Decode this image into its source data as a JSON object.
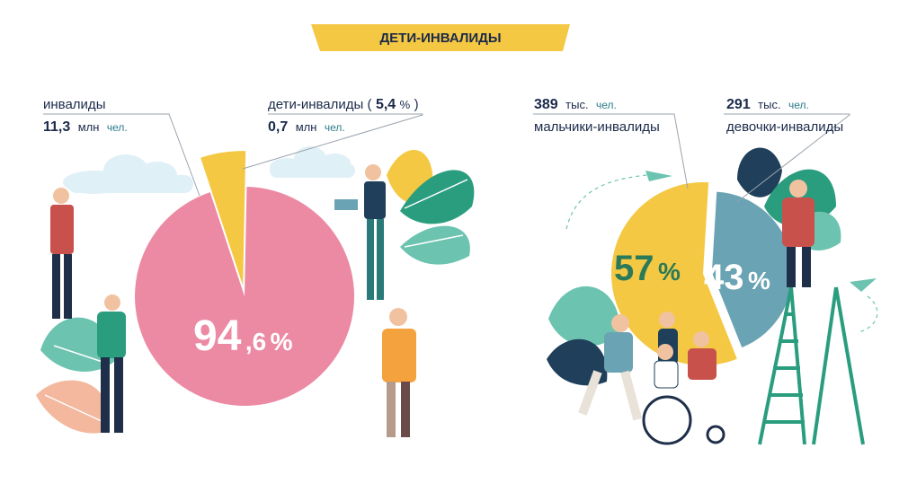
{
  "banner": {
    "title": "ДЕТИ-ИНВАЛИДЫ"
  },
  "left_chart": {
    "labels": {
      "disabled_title": "инвалиды",
      "disabled_value": "11,3",
      "disabled_unit": "млн",
      "disabled_suffix": "чел.",
      "children_title": "дети-инвалиды (",
      "children_pct_int": "5,4",
      "children_pct_sign": "%",
      "children_close": ")",
      "children_value": "0,7",
      "children_unit": "млн",
      "children_suffix": "чел.",
      "big_int": "94",
      "big_dec": ",6",
      "big_sign": "%"
    }
  },
  "right_chart": {
    "labels": {
      "boys_value": "389",
      "boys_unit": "тыс.",
      "boys_suffix": "чел.",
      "boys_title": "мальчики-инвалиды",
      "girls_value": "291",
      "girls_unit": "тыс.",
      "girls_suffix": "чел.",
      "girls_title": "девочки-инвалиды",
      "boys_pct": "57",
      "boys_sign": "%",
      "girls_pct": "43",
      "girls_sign": "%"
    }
  },
  "colors": {
    "banner": "#f4c842",
    "pink": "#ec8aa4",
    "yellow": "#f4c842",
    "teal": "#6aa3b4",
    "leaf_green": "#2a9d7f",
    "leaf_light": "#6cc3b0",
    "leaf_dark": "#1f3f5a",
    "cloud": "#dff0f6"
  },
  "chart_data": [
    {
      "type": "pie",
      "title": "",
      "slices": [
        {
          "name": "инвалиды",
          "value": 94.6,
          "absolute": "11,3 млн чел."
        },
        {
          "name": "дети-инвалиды",
          "value": 5.4,
          "absolute": "0,7 млн чел."
        }
      ]
    },
    {
      "type": "pie",
      "title": "",
      "slices": [
        {
          "name": "мальчики-инвалиды",
          "value": 57,
          "absolute": "389 тыс. чел."
        },
        {
          "name": "девочки-инвалиды",
          "value": 43,
          "absolute": "291 тыс. чел."
        }
      ]
    }
  ]
}
